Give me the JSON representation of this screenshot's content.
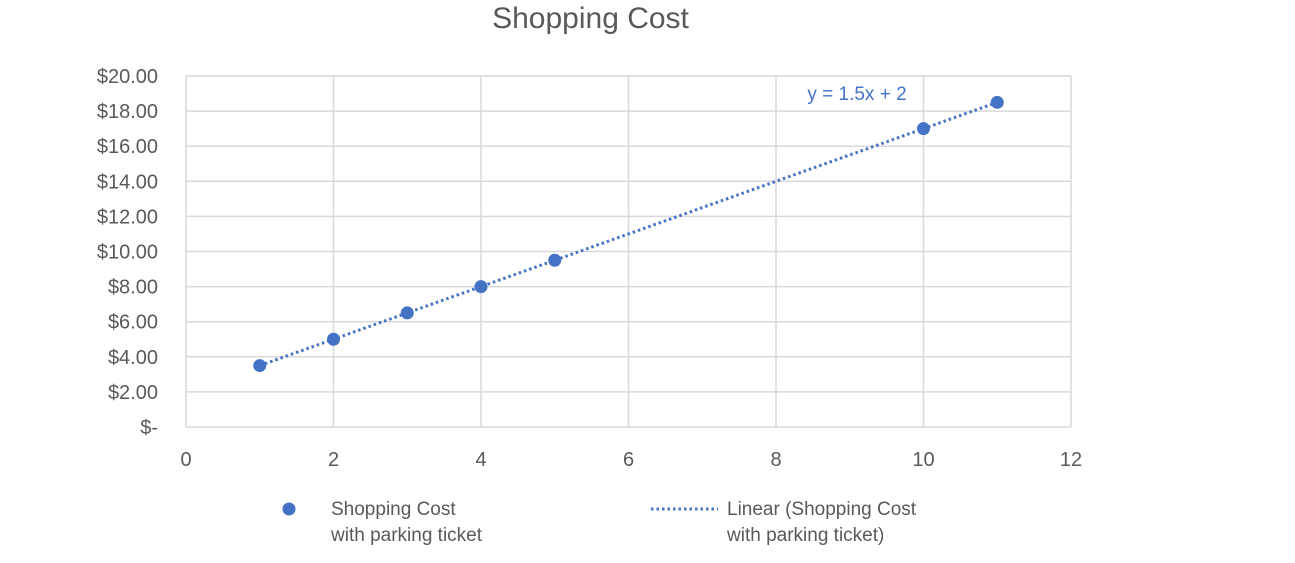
{
  "chart_data": {
    "type": "scatter",
    "title": "Shopping Cost",
    "xlabel": "",
    "ylabel": "",
    "xlim": [
      0,
      12
    ],
    "ylim": [
      0,
      20
    ],
    "x_ticks": [
      0,
      2,
      4,
      6,
      8,
      10,
      12
    ],
    "x_tick_labels": [
      "0",
      "2",
      "4",
      "6",
      "8",
      "10",
      "12"
    ],
    "y_ticks": [
      0,
      2,
      4,
      6,
      8,
      10,
      12,
      14,
      16,
      18,
      20
    ],
    "y_tick_labels": [
      "$-",
      "$2.00",
      "$4.00",
      "$6.00",
      "$8.00",
      "$10.00",
      "$12.00",
      "$14.00",
      "$16.00",
      "$18.00",
      "$20.00"
    ],
    "grid": true,
    "legend_position": "bottom",
    "series": [
      {
        "name": "Shopping Cost with parking ticket",
        "legend_lines": [
          "Shopping Cost",
          "with parking ticket"
        ],
        "color": "#4472c4",
        "points": [
          {
            "x": 1,
            "y": 3.5
          },
          {
            "x": 2,
            "y": 5.0
          },
          {
            "x": 3,
            "y": 6.5
          },
          {
            "x": 4,
            "y": 8.0
          },
          {
            "x": 5,
            "y": 9.5
          },
          {
            "x": 10,
            "y": 17.0
          },
          {
            "x": 11,
            "y": 18.5
          }
        ]
      }
    ],
    "trendline": {
      "type": "linear",
      "name": "Linear (Shopping Cost with parking ticket)",
      "legend_lines": [
        "Linear (Shopping Cost",
        "with parking ticket)"
      ],
      "slope": 1.5,
      "intercept": 2,
      "x_range": [
        1,
        11
      ],
      "equation_label": "y = 1.5x + 2",
      "color": "#4472c4",
      "style": "dotted"
    }
  }
}
